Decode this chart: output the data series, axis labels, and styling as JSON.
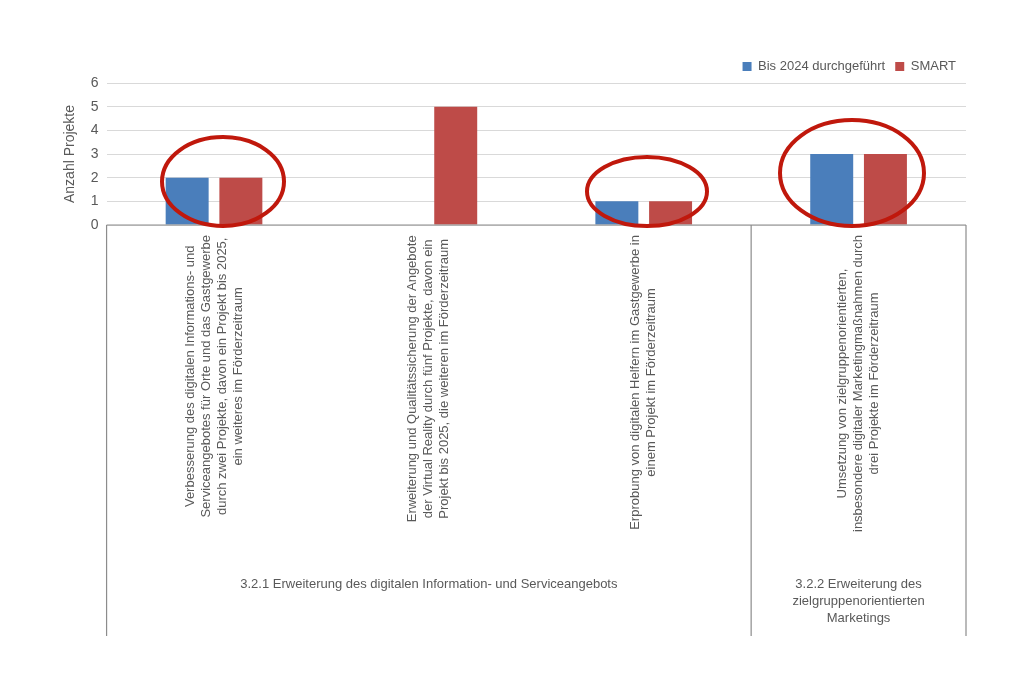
{
  "chart_data": {
    "type": "bar",
    "ylabel": "Anzahl Projekte",
    "categories": [
      "Verbesserung des digitalen Informations- und\nServiceangebotes für Orte und das Gastgewerbe\ndurch zwei Projekte, davon ein Projekt bis 2025,\nein weiteres im Förderzeitraum",
      "Erweiterung und Qualitätssicherung der Angebote\nder Virtual Reality durch fünf Projekte, davon ein\nProjekt bis 2025, die weiteren im Förderzeitraum",
      "Erprobung von digitalen Helfern im Gastgewerbe in\neinem Projekt im Förderzeitraum",
      "Umsetzung von zielgruppenorientierten,\ninsbesondere digitaler Marketingmaßnahmen durch\ndrei Projekte im Förderzeitraum"
    ],
    "series": [
      {
        "name": "Bis 2024 durchgeführt",
        "color": "#4a7ebb",
        "values": [
          2,
          null,
          1,
          3
        ]
      },
      {
        "name": "SMART",
        "color": "#be4b48",
        "values": [
          2,
          5,
          1,
          3
        ]
      }
    ],
    "ylim": [
      0,
      6
    ],
    "yticks": [
      0,
      1,
      2,
      3,
      4,
      5,
      6
    ],
    "grid": "y",
    "legend": "top right",
    "annotations": [
      "3.2.1 Erweiterung des digitalen Information- und Serviceangebots",
      "3.2.2 Erweiterung des\nzielgruppenorientierten\nMarketings"
    ]
  }
}
